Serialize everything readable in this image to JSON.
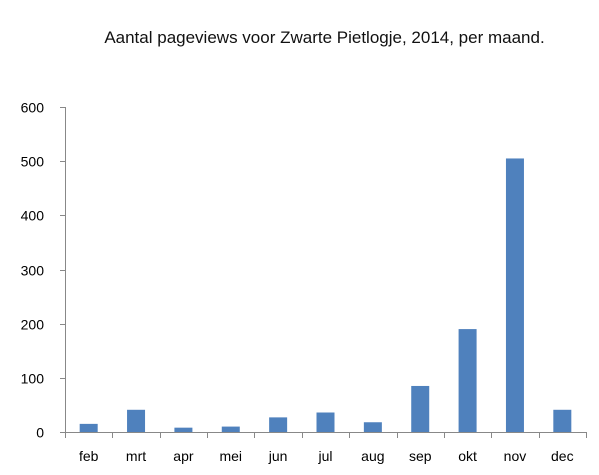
{
  "chart_data": {
    "type": "bar",
    "title": "Aantal pageviews voor Zwarte Pietlogje, 2014, per maand.",
    "xlabel": "",
    "ylabel": "",
    "categories": [
      "feb",
      "mrt",
      "apr",
      "mei",
      "jun",
      "jul",
      "aug",
      "sep",
      "okt",
      "nov",
      "dec"
    ],
    "values": [
      15,
      41,
      8,
      10,
      27,
      36,
      18,
      85,
      190,
      505,
      41
    ],
    "ylim": [
      0,
      600
    ],
    "yticks": [
      0,
      100,
      200,
      300,
      400,
      500,
      600
    ],
    "grid": false,
    "bar_color": "#4f81bd",
    "axis_color": "#888888"
  }
}
